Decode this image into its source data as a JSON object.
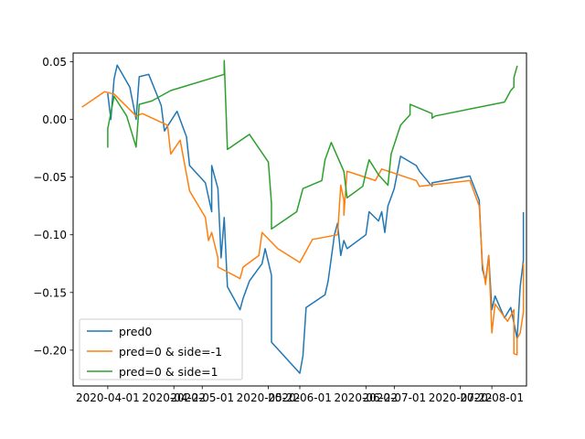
{
  "chart_data": {
    "type": "line",
    "title": "",
    "xlabel": "",
    "ylabel": "",
    "xlim": [
      "2020-03-21",
      "2020-08-12"
    ],
    "ylim": [
      -0.231,
      0.0575
    ],
    "xticks": [
      {
        "date": "2020-04-01",
        "label": "2020-04-01"
      },
      {
        "date": "2020-04-22",
        "label": "2020-04-22"
      },
      {
        "date": "2020-05-01",
        "label": "2020-05-01"
      },
      {
        "date": "2020-05-22",
        "label": "2020-05-22"
      },
      {
        "date": "2020-06-01",
        "label": "2020-06-01"
      },
      {
        "date": "2020-06-22",
        "label": "2020-06-22"
      },
      {
        "date": "2020-07-01",
        "label": "2020-07-01"
      },
      {
        "date": "2020-07-22",
        "label": "2020-07-22"
      },
      {
        "date": "2020-08-01",
        "label": "2020-08-01"
      }
    ],
    "yticks": [
      {
        "value": 0.05,
        "label": "0.05"
      },
      {
        "value": 0.0,
        "label": "0.00"
      },
      {
        "value": -0.05,
        "label": "−0.05"
      },
      {
        "value": -0.1,
        "label": "−0.10"
      },
      {
        "value": -0.15,
        "label": "−0.15"
      },
      {
        "value": -0.2,
        "label": "−0.20"
      }
    ],
    "legend_position": "lower-left",
    "series": [
      {
        "name": "pred0",
        "color": "#1f77b4",
        "points": [
          [
            "2020-04-01",
            0.022
          ],
          [
            "2020-04-02",
            0.0
          ],
          [
            "2020-04-03",
            0.035
          ],
          [
            "2020-04-04",
            0.047
          ],
          [
            "2020-04-08",
            0.028
          ],
          [
            "2020-04-10",
            0.0
          ],
          [
            "2020-04-11",
            0.037
          ],
          [
            "2020-04-14",
            0.039
          ],
          [
            "2020-04-18",
            0.012
          ],
          [
            "2020-04-19",
            -0.01
          ],
          [
            "2020-04-23",
            0.007
          ],
          [
            "2020-04-26",
            -0.015
          ],
          [
            "2020-04-27",
            -0.04
          ],
          [
            "2020-05-02",
            -0.055
          ],
          [
            "2020-05-04",
            -0.08
          ],
          [
            "2020-05-04",
            -0.04
          ],
          [
            "2020-05-06",
            -0.06
          ],
          [
            "2020-05-07",
            -0.12
          ],
          [
            "2020-05-08",
            -0.085
          ],
          [
            "2020-05-09",
            -0.145
          ],
          [
            "2020-05-13",
            -0.165
          ],
          [
            "2020-05-14",
            -0.155
          ],
          [
            "2020-05-16",
            -0.14
          ],
          [
            "2020-05-20",
            -0.125
          ],
          [
            "2020-05-21",
            -0.112
          ],
          [
            "2020-05-23",
            -0.135
          ],
          [
            "2020-05-23",
            -0.193
          ],
          [
            "2020-06-01",
            -0.22
          ],
          [
            "2020-06-02",
            -0.205
          ],
          [
            "2020-06-03",
            -0.163
          ],
          [
            "2020-06-09",
            -0.152
          ],
          [
            "2020-06-10",
            -0.14
          ],
          [
            "2020-06-12",
            -0.1
          ],
          [
            "2020-06-13",
            -0.09
          ],
          [
            "2020-06-14",
            -0.118
          ],
          [
            "2020-06-15",
            -0.105
          ],
          [
            "2020-06-16",
            -0.112
          ],
          [
            "2020-06-22",
            -0.1
          ],
          [
            "2020-06-23",
            -0.08
          ],
          [
            "2020-06-26",
            -0.088
          ],
          [
            "2020-06-27",
            -0.08
          ],
          [
            "2020-06-28",
            -0.098
          ],
          [
            "2020-06-29",
            -0.075
          ],
          [
            "2020-07-01",
            -0.06
          ],
          [
            "2020-07-03",
            -0.032
          ],
          [
            "2020-07-08",
            -0.04
          ],
          [
            "2020-07-09",
            -0.045
          ],
          [
            "2020-07-13",
            -0.058
          ],
          [
            "2020-07-13",
            -0.055
          ],
          [
            "2020-07-25",
            -0.049
          ],
          [
            "2020-07-28",
            -0.07
          ],
          [
            "2020-07-29",
            -0.13
          ],
          [
            "2020-07-30",
            -0.14
          ],
          [
            "2020-07-31",
            -0.118
          ],
          [
            "2020-08-01",
            -0.165
          ],
          [
            "2020-08-02",
            -0.153
          ],
          [
            "2020-08-05",
            -0.172
          ],
          [
            "2020-08-07",
            -0.163
          ],
          [
            "2020-08-09",
            -0.19
          ],
          [
            "2020-08-10",
            -0.145
          ],
          [
            "2020-08-11",
            -0.122
          ],
          [
            "2020-08-11",
            -0.081
          ]
        ]
      },
      {
        "name": "pred=0 & side=-1",
        "color": "#ff7f0e",
        "points": [
          [
            "2020-03-24",
            0.011
          ],
          [
            "2020-03-31",
            0.024
          ],
          [
            "2020-04-03",
            0.022
          ],
          [
            "2020-04-10",
            0.003
          ],
          [
            "2020-04-12",
            0.005
          ],
          [
            "2020-04-20",
            -0.005
          ],
          [
            "2020-04-21",
            -0.03
          ],
          [
            "2020-04-24",
            -0.018
          ],
          [
            "2020-04-27",
            -0.062
          ],
          [
            "2020-05-02",
            -0.085
          ],
          [
            "2020-05-03",
            -0.105
          ],
          [
            "2020-05-04",
            -0.098
          ],
          [
            "2020-05-06",
            -0.12
          ],
          [
            "2020-05-06",
            -0.128
          ],
          [
            "2020-05-11",
            -0.135
          ],
          [
            "2020-05-13",
            -0.138
          ],
          [
            "2020-05-14",
            -0.128
          ],
          [
            "2020-05-19",
            -0.118
          ],
          [
            "2020-05-20",
            -0.098
          ],
          [
            "2020-05-25",
            -0.112
          ],
          [
            "2020-06-01",
            -0.124
          ],
          [
            "2020-06-05",
            -0.104
          ],
          [
            "2020-06-13",
            -0.1
          ],
          [
            "2020-06-14",
            -0.057
          ],
          [
            "2020-06-15",
            -0.07
          ],
          [
            "2020-06-15",
            -0.083
          ],
          [
            "2020-06-16",
            -0.045
          ],
          [
            "2020-06-25",
            -0.053
          ],
          [
            "2020-06-27",
            -0.043
          ],
          [
            "2020-07-08",
            -0.053
          ],
          [
            "2020-07-09",
            -0.058
          ],
          [
            "2020-07-25",
            -0.053
          ],
          [
            "2020-07-28",
            -0.075
          ],
          [
            "2020-07-29",
            -0.125
          ],
          [
            "2020-07-30",
            -0.143
          ],
          [
            "2020-07-31",
            -0.118
          ],
          [
            "2020-08-01",
            -0.185
          ],
          [
            "2020-08-02",
            -0.16
          ],
          [
            "2020-08-06",
            -0.175
          ],
          [
            "2020-08-07",
            -0.17
          ],
          [
            "2020-08-08",
            -0.165
          ],
          [
            "2020-08-08",
            -0.203
          ],
          [
            "2020-08-09",
            -0.204
          ],
          [
            "2020-08-09",
            -0.19
          ],
          [
            "2020-08-10",
            -0.185
          ],
          [
            "2020-08-11",
            -0.167
          ],
          [
            "2020-08-11",
            -0.125
          ]
        ]
      },
      {
        "name": "pred=0 & side=1",
        "color": "#2ca02c",
        "points": [
          [
            "2020-04-01",
            -0.024
          ],
          [
            "2020-04-01",
            -0.008
          ],
          [
            "2020-04-03",
            0.02
          ],
          [
            "2020-04-07",
            0.003
          ],
          [
            "2020-04-10",
            -0.024
          ],
          [
            "2020-04-11",
            0.013
          ],
          [
            "2020-04-15",
            0.016
          ],
          [
            "2020-04-21",
            0.025
          ],
          [
            "2020-05-08",
            0.039
          ],
          [
            "2020-05-08",
            0.051
          ],
          [
            "2020-05-09",
            -0.026
          ],
          [
            "2020-05-16",
            -0.013
          ],
          [
            "2020-05-22",
            -0.037
          ],
          [
            "2020-05-23",
            -0.073
          ],
          [
            "2020-05-23",
            -0.095
          ],
          [
            "2020-05-31",
            -0.08
          ],
          [
            "2020-06-02",
            -0.06
          ],
          [
            "2020-06-08",
            -0.053
          ],
          [
            "2020-06-09",
            -0.035
          ],
          [
            "2020-06-11",
            -0.02
          ],
          [
            "2020-06-15",
            -0.045
          ],
          [
            "2020-06-16",
            -0.068
          ],
          [
            "2020-06-21",
            -0.058
          ],
          [
            "2020-06-22",
            -0.046
          ],
          [
            "2020-06-23",
            -0.035
          ],
          [
            "2020-06-26",
            -0.048
          ],
          [
            "2020-06-29",
            -0.057
          ],
          [
            "2020-06-30",
            -0.03
          ],
          [
            "2020-07-03",
            -0.005
          ],
          [
            "2020-07-06",
            0.004
          ],
          [
            "2020-07-06",
            0.013
          ],
          [
            "2020-07-13",
            0.005
          ],
          [
            "2020-07-13",
            0.001
          ],
          [
            "2020-07-14",
            0.003
          ],
          [
            "2020-08-05",
            0.015
          ],
          [
            "2020-08-07",
            0.025
          ],
          [
            "2020-08-08",
            0.028
          ],
          [
            "2020-08-08",
            0.036
          ],
          [
            "2020-08-09",
            0.046
          ]
        ]
      }
    ]
  }
}
